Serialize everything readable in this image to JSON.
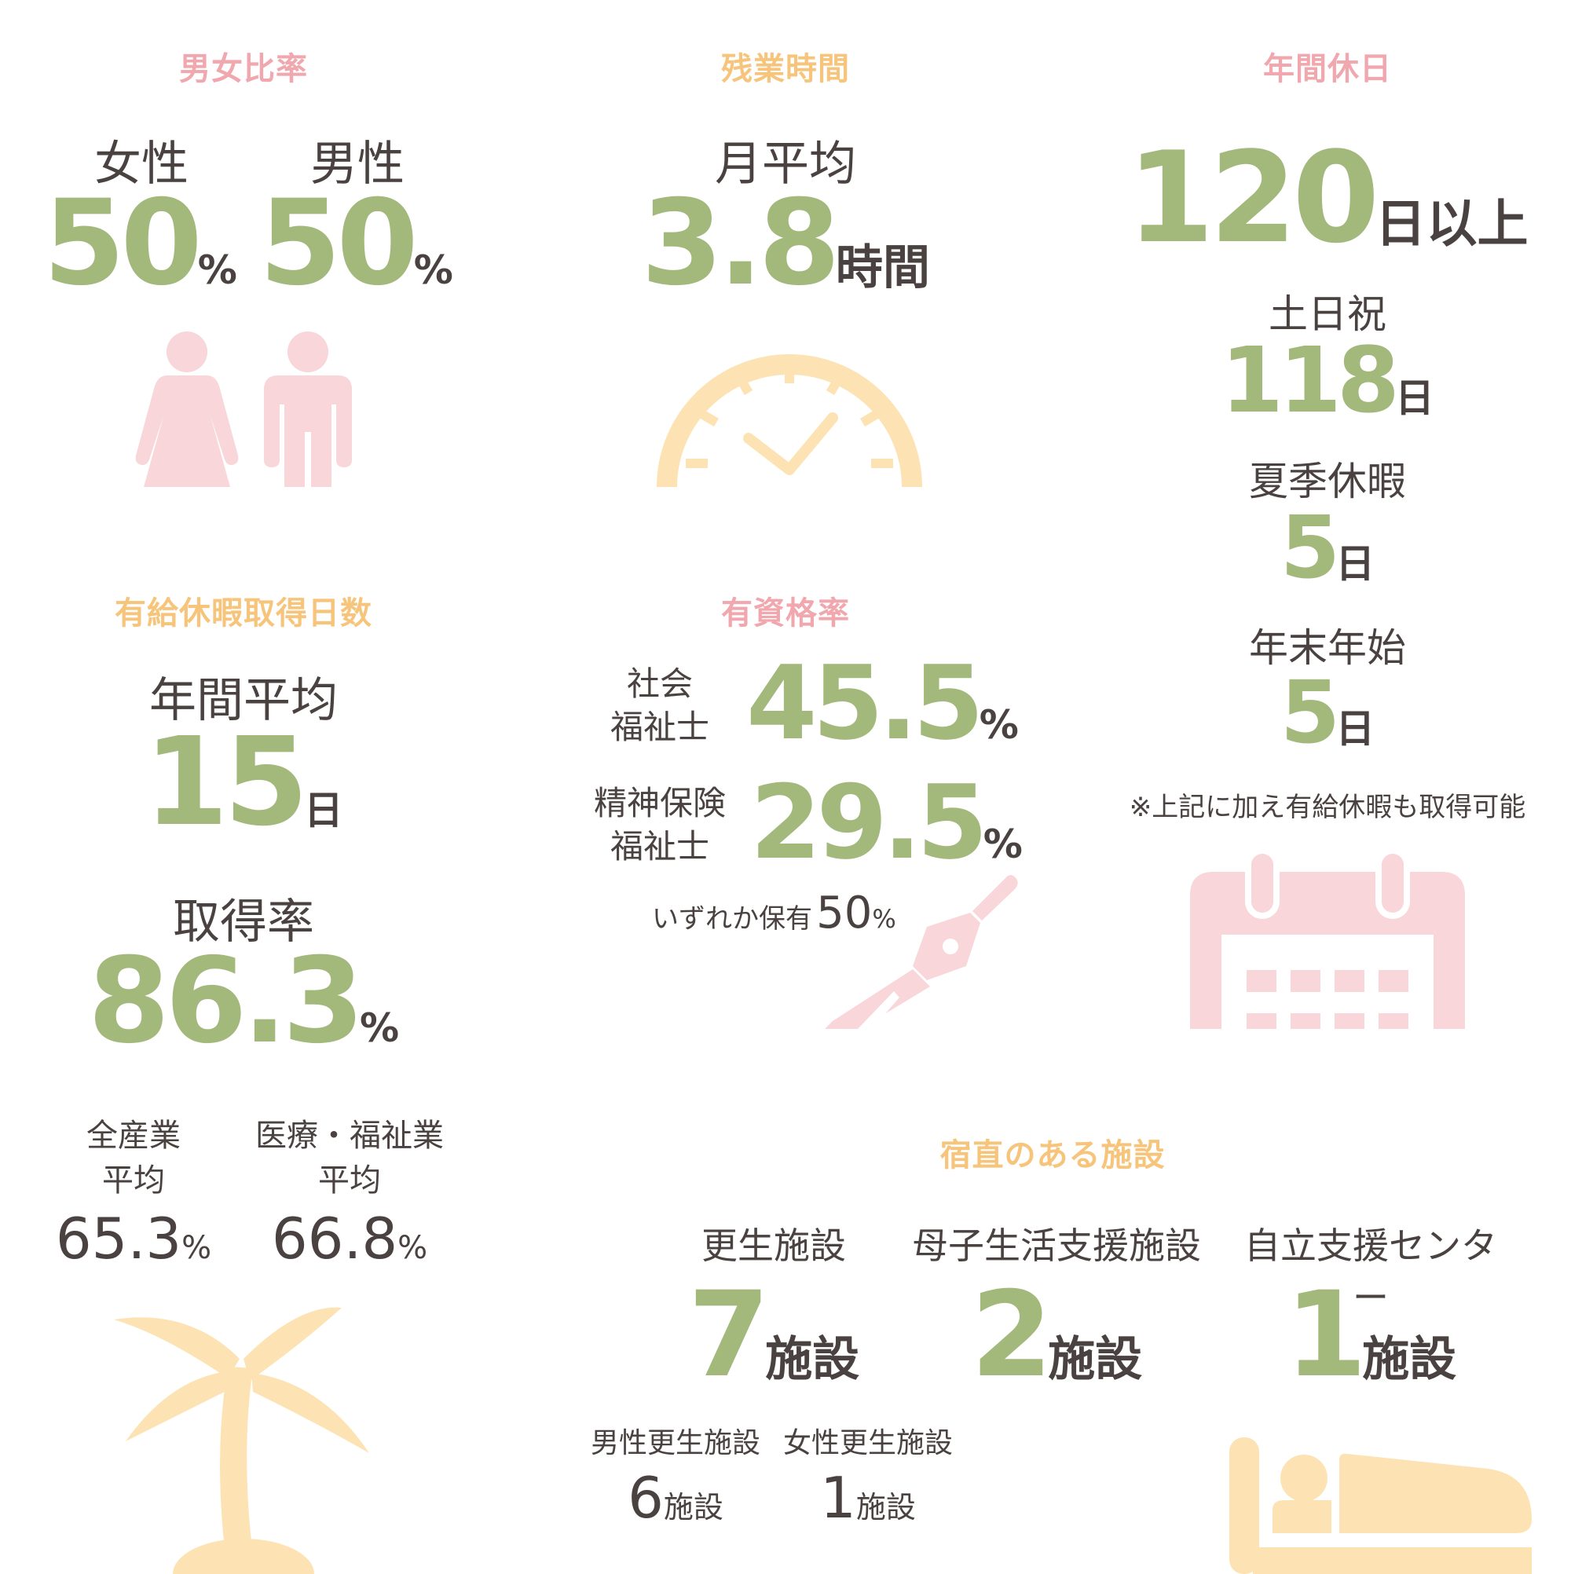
{
  "gender": {
    "title": "男女比率",
    "female_label": "女性",
    "female_value": "50",
    "male_label": "男性",
    "male_value": "50",
    "percent": "%"
  },
  "overtime": {
    "title": "残業時間",
    "label": "月平均",
    "value": "3.8",
    "unit": "時間"
  },
  "holidays": {
    "title": "年間休日",
    "total_value": "120",
    "total_unit": "日以上",
    "weekend_label": "土日祝",
    "weekend_value": "118",
    "summer_label": "夏季休暇",
    "summer_value": "5",
    "newyear_label": "年末年始",
    "newyear_value": "5",
    "day_unit": "日",
    "note": "※上記に加え有給休暇も取得可能"
  },
  "paid_leave": {
    "title": "有給休暇取得日数",
    "avg_label": "年間平均",
    "avg_value": "15",
    "avg_unit": "日",
    "rate_label": "取得率",
    "rate_value": "86.3",
    "percent": "%",
    "all_industry_label1": "全産業",
    "all_industry_label2": "平均",
    "all_industry_value": "65.3",
    "welfare_label1": "医療・福祉業",
    "welfare_label2": "平均",
    "welfare_value": "66.8"
  },
  "qualification": {
    "title": "有資格率",
    "social_label1": "社会",
    "social_label2": "福祉士",
    "social_value": "45.5",
    "mental_label1": "精神保険",
    "mental_label2": "福祉士",
    "mental_value": "29.5",
    "percent": "%",
    "either_label": "いずれか保有",
    "either_value": "50"
  },
  "night_duty": {
    "title": "宿直のある施設",
    "facilities": [
      {
        "name": "更生施設",
        "value": "7"
      },
      {
        "name": "母子生活支援施設",
        "value": "2"
      },
      {
        "name": "自立支援センター",
        "value": "1"
      }
    ],
    "facility_unit": "施設",
    "male_label": "男性更生施設",
    "male_value": "6",
    "female_label": "女性更生施設",
    "female_value": "1"
  },
  "colors": {
    "green": "#a3b97c",
    "pink": "#f0a7ae",
    "orange": "#f6c57b",
    "icon_pink": "#f8d6d9",
    "icon_yellow": "#fde3b3",
    "text": "#4a4240"
  },
  "icons": [
    "female-icon",
    "male-icon",
    "clock-icon",
    "pen-icon",
    "calendar-icon",
    "palm-tree-icon",
    "bed-icon"
  ]
}
